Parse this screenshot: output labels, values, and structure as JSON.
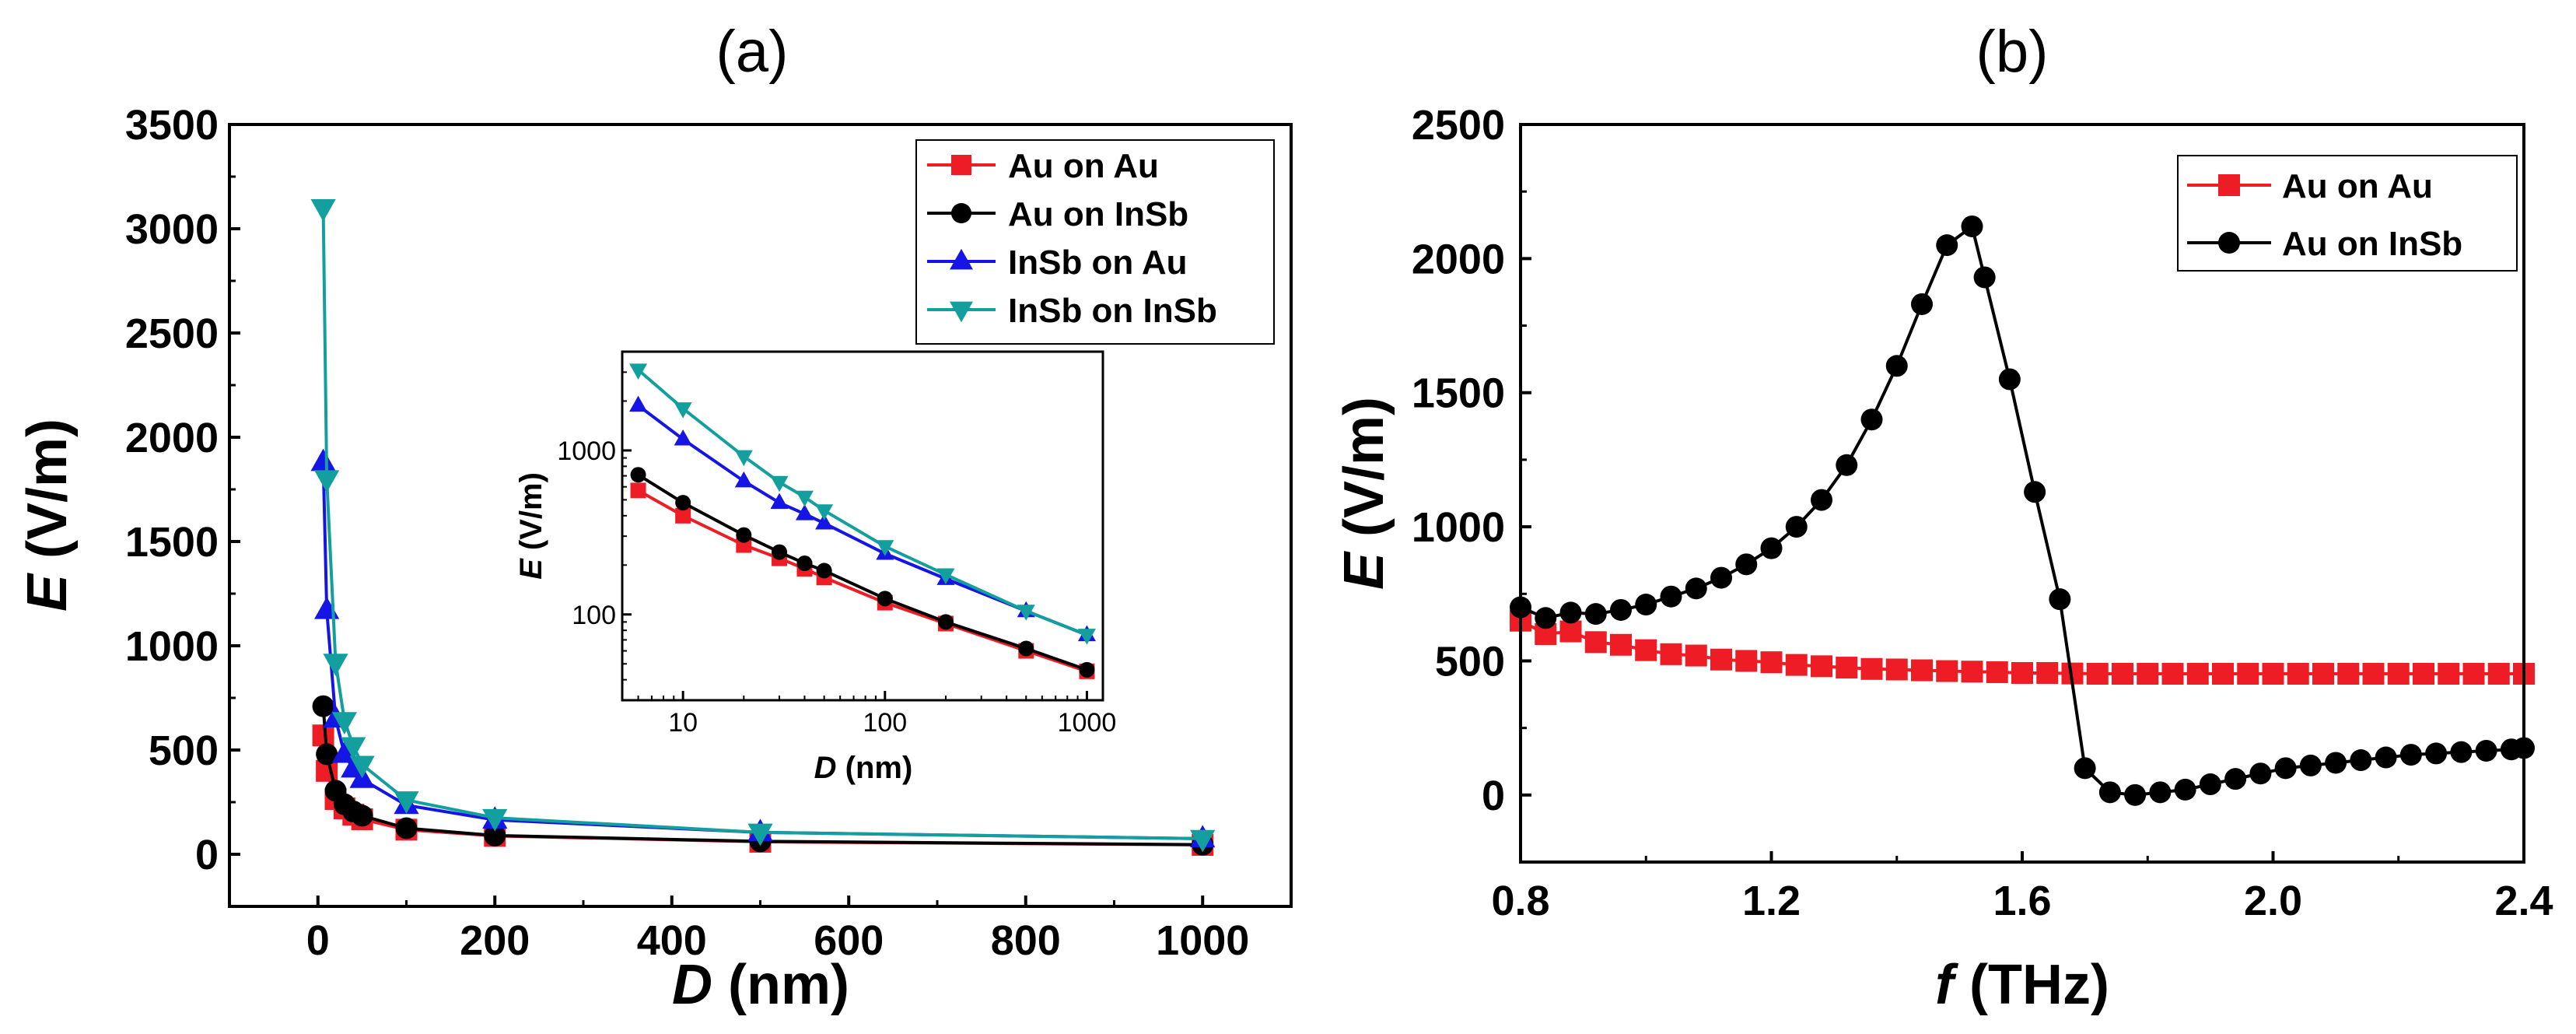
{
  "figure": {
    "panel_a_label": "(a)",
    "panel_b_label": "(b)"
  },
  "chart_data": [
    {
      "id": "a",
      "type": "line",
      "title": "(a)",
      "xlabel": "D (nm)",
      "ylabel": "E (V/m)",
      "xlim": [
        -100,
        1100
      ],
      "ylim": [
        -250,
        3500
      ],
      "xticks": [
        0,
        200,
        400,
        600,
        800,
        1000
      ],
      "yticks": [
        0,
        500,
        1000,
        1500,
        2000,
        2500,
        3000,
        3500
      ],
      "x": [
        6,
        10,
        20,
        30,
        40,
        50,
        100,
        200,
        500,
        1000
      ],
      "legend_position": "top-right",
      "series": [
        {
          "name": "Au on Au",
          "color": "#ee1c24",
          "marker": "square",
          "values": [
            570,
            400,
            265,
            220,
            190,
            168,
            118,
            88,
            60,
            45
          ]
        },
        {
          "name": "Au on InSb",
          "color": "#000000",
          "marker": "circle",
          "values": [
            710,
            480,
            305,
            240,
            205,
            185,
            125,
            90,
            62,
            46
          ]
        },
        {
          "name": "InSb on Au",
          "color": "#1515e6",
          "marker": "triangle-up",
          "values": [
            1880,
            1170,
            650,
            480,
            410,
            360,
            235,
            165,
            105,
            75
          ]
        },
        {
          "name": "InSb on InSb",
          "color": "#139f9d",
          "marker": "triangle-down",
          "values": [
            3100,
            1800,
            920,
            640,
            520,
            430,
            260,
            175,
            105,
            75
          ]
        }
      ],
      "inset": {
        "type": "line",
        "scale": "log-log",
        "xlabel": "D (nm)",
        "ylabel": "E (V/m)",
        "xticks": [
          10,
          100,
          1000
        ],
        "yticks": [
          100,
          1000
        ],
        "xlim": [
          5,
          1200
        ],
        "ylim": [
          30,
          4000
        ]
      }
    },
    {
      "id": "b",
      "type": "line",
      "title": "(b)",
      "xlabel": "f (THz)",
      "ylabel": "E (V/m)",
      "xlim": [
        0.8,
        2.4
      ],
      "ylim": [
        -250,
        2500
      ],
      "xticks": [
        0.8,
        1.2,
        1.6,
        2.0,
        2.4
      ],
      "xtick_labels": [
        "0.8",
        "1.2",
        "1.6",
        "2.0",
        "2.4"
      ],
      "yticks": [
        0,
        500,
        1000,
        1500,
        2000,
        2500
      ],
      "legend_position": "top-right",
      "series": [
        {
          "name": "Au on Au",
          "color": "#ee1c24",
          "marker": "square",
          "x": [
            0.8,
            0.84,
            0.88,
            0.92,
            0.96,
            1.0,
            1.04,
            1.08,
            1.12,
            1.16,
            1.2,
            1.24,
            1.28,
            1.32,
            1.36,
            1.4,
            1.44,
            1.48,
            1.52,
            1.56,
            1.6,
            1.64,
            1.68,
            1.72,
            1.76,
            1.8,
            1.84,
            1.88,
            1.92,
            1.96,
            2.0,
            2.04,
            2.08,
            2.12,
            2.16,
            2.2,
            2.24,
            2.28,
            2.32,
            2.36,
            2.4
          ],
          "values": [
            650,
            600,
            610,
            570,
            560,
            540,
            525,
            520,
            505,
            500,
            495,
            485,
            480,
            475,
            470,
            468,
            465,
            462,
            460,
            458,
            455,
            455,
            453,
            452,
            452,
            452,
            452,
            452,
            452,
            452,
            452,
            452,
            452,
            452,
            452,
            452,
            452,
            452,
            452,
            452,
            452
          ]
        },
        {
          "name": "Au on InSb",
          "color": "#000000",
          "marker": "circle",
          "x": [
            0.8,
            0.84,
            0.88,
            0.92,
            0.96,
            1.0,
            1.04,
            1.08,
            1.12,
            1.16,
            1.2,
            1.24,
            1.28,
            1.32,
            1.36,
            1.4,
            1.44,
            1.48,
            1.52,
            1.54,
            1.58,
            1.62,
            1.66,
            1.7,
            1.74,
            1.78,
            1.82,
            1.86,
            1.9,
            1.94,
            1.98,
            2.02,
            2.06,
            2.1,
            2.14,
            2.18,
            2.22,
            2.26,
            2.3,
            2.34,
            2.38,
            2.4
          ],
          "values": [
            700,
            660,
            680,
            675,
            690,
            710,
            740,
            770,
            810,
            860,
            920,
            1000,
            1100,
            1230,
            1400,
            1600,
            1830,
            2050,
            2120,
            1930,
            1550,
            1130,
            730,
            100,
            10,
            0,
            10,
            20,
            40,
            60,
            80,
            100,
            110,
            120,
            130,
            140,
            150,
            155,
            160,
            165,
            170,
            175
          ]
        }
      ]
    }
  ]
}
